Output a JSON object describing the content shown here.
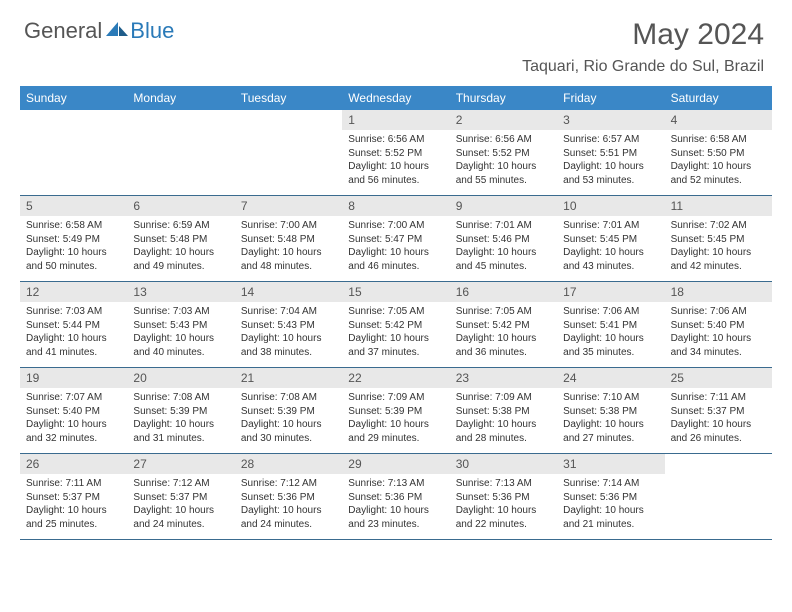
{
  "brand": {
    "part1": "General",
    "part2": "Blue"
  },
  "title": "May 2024",
  "location": "Taquari, Rio Grande do Sul, Brazil",
  "colors": {
    "header_bg": "#3a87c7",
    "header_text": "#ffffff",
    "daynum_bg": "#e8e8e8",
    "rule": "#3a6b8f",
    "brand_gray": "#555555",
    "brand_blue": "#2a7ab8"
  },
  "day_names": [
    "Sunday",
    "Monday",
    "Tuesday",
    "Wednesday",
    "Thursday",
    "Friday",
    "Saturday"
  ],
  "weeks": [
    [
      {
        "empty": true
      },
      {
        "empty": true
      },
      {
        "empty": true
      },
      {
        "day": "1",
        "sunrise": "Sunrise: 6:56 AM",
        "sunset": "Sunset: 5:52 PM",
        "dl1": "Daylight: 10 hours",
        "dl2": "and 56 minutes."
      },
      {
        "day": "2",
        "sunrise": "Sunrise: 6:56 AM",
        "sunset": "Sunset: 5:52 PM",
        "dl1": "Daylight: 10 hours",
        "dl2": "and 55 minutes."
      },
      {
        "day": "3",
        "sunrise": "Sunrise: 6:57 AM",
        "sunset": "Sunset: 5:51 PM",
        "dl1": "Daylight: 10 hours",
        "dl2": "and 53 minutes."
      },
      {
        "day": "4",
        "sunrise": "Sunrise: 6:58 AM",
        "sunset": "Sunset: 5:50 PM",
        "dl1": "Daylight: 10 hours",
        "dl2": "and 52 minutes."
      }
    ],
    [
      {
        "day": "5",
        "sunrise": "Sunrise: 6:58 AM",
        "sunset": "Sunset: 5:49 PM",
        "dl1": "Daylight: 10 hours",
        "dl2": "and 50 minutes."
      },
      {
        "day": "6",
        "sunrise": "Sunrise: 6:59 AM",
        "sunset": "Sunset: 5:48 PM",
        "dl1": "Daylight: 10 hours",
        "dl2": "and 49 minutes."
      },
      {
        "day": "7",
        "sunrise": "Sunrise: 7:00 AM",
        "sunset": "Sunset: 5:48 PM",
        "dl1": "Daylight: 10 hours",
        "dl2": "and 48 minutes."
      },
      {
        "day": "8",
        "sunrise": "Sunrise: 7:00 AM",
        "sunset": "Sunset: 5:47 PM",
        "dl1": "Daylight: 10 hours",
        "dl2": "and 46 minutes."
      },
      {
        "day": "9",
        "sunrise": "Sunrise: 7:01 AM",
        "sunset": "Sunset: 5:46 PM",
        "dl1": "Daylight: 10 hours",
        "dl2": "and 45 minutes."
      },
      {
        "day": "10",
        "sunrise": "Sunrise: 7:01 AM",
        "sunset": "Sunset: 5:45 PM",
        "dl1": "Daylight: 10 hours",
        "dl2": "and 43 minutes."
      },
      {
        "day": "11",
        "sunrise": "Sunrise: 7:02 AM",
        "sunset": "Sunset: 5:45 PM",
        "dl1": "Daylight: 10 hours",
        "dl2": "and 42 minutes."
      }
    ],
    [
      {
        "day": "12",
        "sunrise": "Sunrise: 7:03 AM",
        "sunset": "Sunset: 5:44 PM",
        "dl1": "Daylight: 10 hours",
        "dl2": "and 41 minutes."
      },
      {
        "day": "13",
        "sunrise": "Sunrise: 7:03 AM",
        "sunset": "Sunset: 5:43 PM",
        "dl1": "Daylight: 10 hours",
        "dl2": "and 40 minutes."
      },
      {
        "day": "14",
        "sunrise": "Sunrise: 7:04 AM",
        "sunset": "Sunset: 5:43 PM",
        "dl1": "Daylight: 10 hours",
        "dl2": "and 38 minutes."
      },
      {
        "day": "15",
        "sunrise": "Sunrise: 7:05 AM",
        "sunset": "Sunset: 5:42 PM",
        "dl1": "Daylight: 10 hours",
        "dl2": "and 37 minutes."
      },
      {
        "day": "16",
        "sunrise": "Sunrise: 7:05 AM",
        "sunset": "Sunset: 5:42 PM",
        "dl1": "Daylight: 10 hours",
        "dl2": "and 36 minutes."
      },
      {
        "day": "17",
        "sunrise": "Sunrise: 7:06 AM",
        "sunset": "Sunset: 5:41 PM",
        "dl1": "Daylight: 10 hours",
        "dl2": "and 35 minutes."
      },
      {
        "day": "18",
        "sunrise": "Sunrise: 7:06 AM",
        "sunset": "Sunset: 5:40 PM",
        "dl1": "Daylight: 10 hours",
        "dl2": "and 34 minutes."
      }
    ],
    [
      {
        "day": "19",
        "sunrise": "Sunrise: 7:07 AM",
        "sunset": "Sunset: 5:40 PM",
        "dl1": "Daylight: 10 hours",
        "dl2": "and 32 minutes."
      },
      {
        "day": "20",
        "sunrise": "Sunrise: 7:08 AM",
        "sunset": "Sunset: 5:39 PM",
        "dl1": "Daylight: 10 hours",
        "dl2": "and 31 minutes."
      },
      {
        "day": "21",
        "sunrise": "Sunrise: 7:08 AM",
        "sunset": "Sunset: 5:39 PM",
        "dl1": "Daylight: 10 hours",
        "dl2": "and 30 minutes."
      },
      {
        "day": "22",
        "sunrise": "Sunrise: 7:09 AM",
        "sunset": "Sunset: 5:39 PM",
        "dl1": "Daylight: 10 hours",
        "dl2": "and 29 minutes."
      },
      {
        "day": "23",
        "sunrise": "Sunrise: 7:09 AM",
        "sunset": "Sunset: 5:38 PM",
        "dl1": "Daylight: 10 hours",
        "dl2": "and 28 minutes."
      },
      {
        "day": "24",
        "sunrise": "Sunrise: 7:10 AM",
        "sunset": "Sunset: 5:38 PM",
        "dl1": "Daylight: 10 hours",
        "dl2": "and 27 minutes."
      },
      {
        "day": "25",
        "sunrise": "Sunrise: 7:11 AM",
        "sunset": "Sunset: 5:37 PM",
        "dl1": "Daylight: 10 hours",
        "dl2": "and 26 minutes."
      }
    ],
    [
      {
        "day": "26",
        "sunrise": "Sunrise: 7:11 AM",
        "sunset": "Sunset: 5:37 PM",
        "dl1": "Daylight: 10 hours",
        "dl2": "and 25 minutes."
      },
      {
        "day": "27",
        "sunrise": "Sunrise: 7:12 AM",
        "sunset": "Sunset: 5:37 PM",
        "dl1": "Daylight: 10 hours",
        "dl2": "and 24 minutes."
      },
      {
        "day": "28",
        "sunrise": "Sunrise: 7:12 AM",
        "sunset": "Sunset: 5:36 PM",
        "dl1": "Daylight: 10 hours",
        "dl2": "and 24 minutes."
      },
      {
        "day": "29",
        "sunrise": "Sunrise: 7:13 AM",
        "sunset": "Sunset: 5:36 PM",
        "dl1": "Daylight: 10 hours",
        "dl2": "and 23 minutes."
      },
      {
        "day": "30",
        "sunrise": "Sunrise: 7:13 AM",
        "sunset": "Sunset: 5:36 PM",
        "dl1": "Daylight: 10 hours",
        "dl2": "and 22 minutes."
      },
      {
        "day": "31",
        "sunrise": "Sunrise: 7:14 AM",
        "sunset": "Sunset: 5:36 PM",
        "dl1": "Daylight: 10 hours",
        "dl2": "and 21 minutes."
      },
      {
        "empty": true
      }
    ]
  ]
}
